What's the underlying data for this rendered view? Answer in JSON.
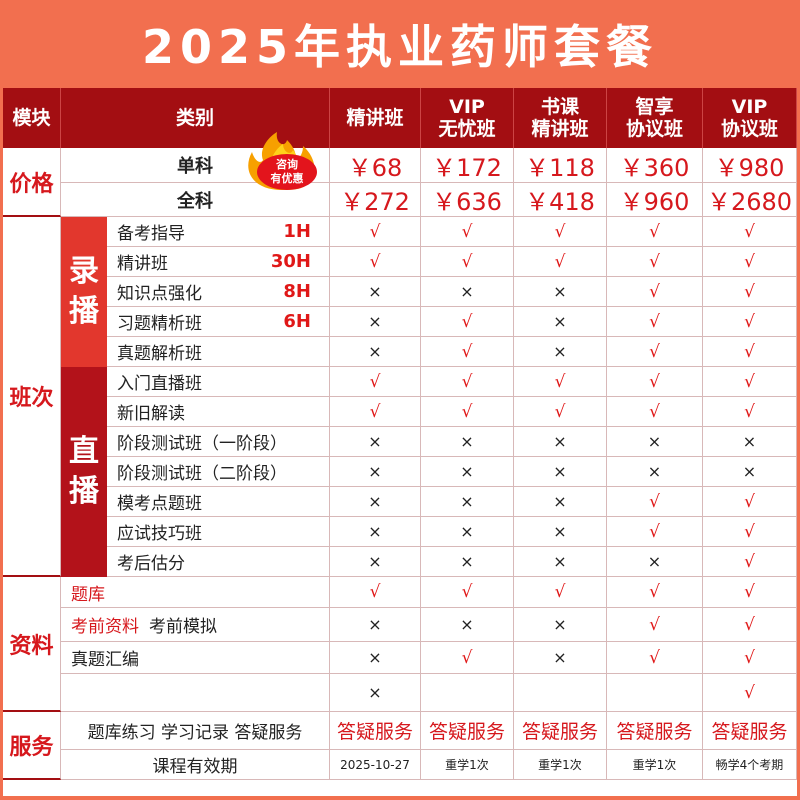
{
  "title": "2025年执业药师套餐",
  "header": {
    "module": "模块",
    "category": "类别",
    "plans": [
      [
        "精讲班"
      ],
      [
        "VIP",
        "无忧班"
      ],
      [
        "书课",
        "精讲班"
      ],
      [
        "智享",
        "协议班"
      ],
      [
        "VIP",
        "协议班"
      ]
    ]
  },
  "badge": {
    "line1": "咨询",
    "line2": "有优惠"
  },
  "price": {
    "module": "价格",
    "rows": [
      {
        "label": "单科",
        "values": [
          "￥68",
          "￥172",
          "￥118",
          "￥360",
          "￥980"
        ]
      },
      {
        "label": "全科",
        "values": [
          "￥272",
          "￥636",
          "￥418",
          "￥960",
          "￥2680"
        ]
      }
    ]
  },
  "classes": {
    "module": "班次",
    "recorded": {
      "label": "录播",
      "rows": [
        {
          "label": "备考指导",
          "hours": "1H",
          "marks": [
            "√",
            "√",
            "√",
            "√",
            "√"
          ]
        },
        {
          "label": "精讲班",
          "hours": "30H",
          "marks": [
            "√",
            "√",
            "√",
            "√",
            "√"
          ]
        },
        {
          "label": "知识点强化",
          "hours": "8H",
          "marks": [
            "×",
            "×",
            "×",
            "√",
            "√"
          ]
        },
        {
          "label": "习题精析班",
          "hours": "6H",
          "marks": [
            "×",
            "√",
            "×",
            "√",
            "√"
          ]
        },
        {
          "label": "真题解析班",
          "hours": "",
          "marks": [
            "×",
            "√",
            "×",
            "√",
            "√"
          ]
        }
      ]
    },
    "live": {
      "label": "直播",
      "rows": [
        {
          "label": "入门直播班",
          "marks": [
            "√",
            "√",
            "√",
            "√",
            "√"
          ]
        },
        {
          "label": "新旧解读",
          "marks": [
            "√",
            "√",
            "√",
            "√",
            "√"
          ]
        },
        {
          "label": "阶段测试班（一阶段）",
          "marks": [
            "×",
            "×",
            "×",
            "×",
            "×"
          ]
        },
        {
          "label": "阶段测试班（二阶段）",
          "marks": [
            "×",
            "×",
            "×",
            "×",
            "×"
          ]
        },
        {
          "label": "模考点题班",
          "marks": [
            "×",
            "×",
            "×",
            "√",
            "√"
          ]
        },
        {
          "label": "应试技巧班",
          "marks": [
            "×",
            "×",
            "×",
            "√",
            "√"
          ]
        },
        {
          "label": "考后估分",
          "marks": [
            "×",
            "×",
            "×",
            "×",
            "√"
          ]
        }
      ]
    }
  },
  "materials": {
    "module": "资料",
    "rows": [
      {
        "label": "题库",
        "label2": "",
        "marks": [
          "√",
          "√",
          "√",
          "√",
          "√"
        ]
      },
      {
        "label": "考前资料",
        "label2": "考前模拟",
        "marks": [
          "×",
          "×",
          "×",
          "√",
          "√"
        ]
      },
      {
        "label": "真题汇编",
        "label2": "",
        "marks": [
          "×",
          "√",
          "×",
          "√",
          "√"
        ]
      },
      {
        "label": "",
        "label2": "",
        "marks": [
          "×",
          "",
          "",
          "",
          "√"
        ]
      }
    ]
  },
  "service": {
    "module": "服务",
    "rows": [
      {
        "label": "题库练习 学习记录 答疑服务",
        "values": [
          "答疑服务",
          "答疑服务",
          "答疑服务",
          "答疑服务",
          "答疑服务"
        ]
      },
      {
        "label": "课程有效期",
        "values": [
          "2025-10-27",
          "重学1次",
          "重学1次",
          "重学1次",
          "畅学4个考期"
        ]
      }
    ]
  },
  "colors": {
    "background": "#f26f4f",
    "header": "#a30e12",
    "accent": "#d6181d"
  }
}
